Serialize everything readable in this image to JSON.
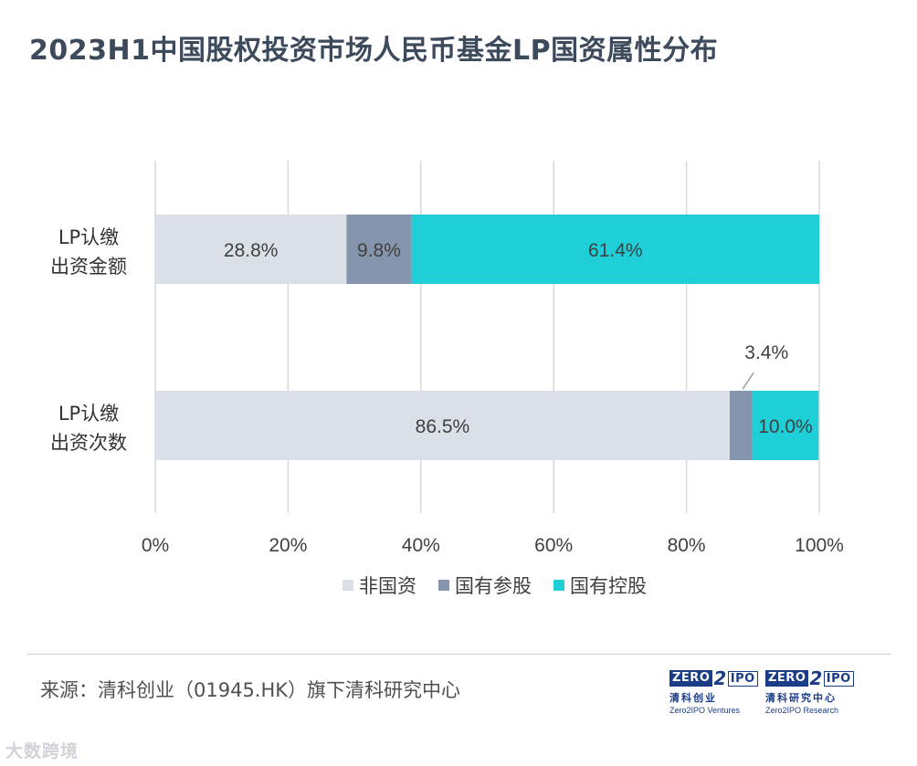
{
  "title": "2023H1中国股权投资市场人民币基金LP国资属性分布",
  "source": "来源：清科创业（01945.HK）旗下清科研究中心",
  "watermark": "大数跨境",
  "logos": [
    {
      "mark_left": "ZERO",
      "mark_mid": "2",
      "mark_right": "IPO",
      "cn": "清科创业",
      "en": "Zero2IPO Ventures"
    },
    {
      "mark_left": "ZERO",
      "mark_mid": "2",
      "mark_right": "IPO",
      "cn": "清科研究中心",
      "en": "Zero2IPO Research"
    }
  ],
  "colors": {
    "non_state": "#dbdfe7",
    "state_minority": "#8595ad",
    "state_controlled": "#1fcfd8",
    "grid": "#d9d9d9",
    "text": "#404040"
  },
  "chart_data": {
    "type": "bar",
    "orientation": "horizontal",
    "stacked": true,
    "title": "2023H1中国股权投资市场人民币基金LP国资属性分布",
    "categories": [
      [
        "LP认缴",
        "出资金额"
      ],
      [
        "LP认缴",
        "出资次数"
      ]
    ],
    "series": [
      {
        "name": "非国资",
        "values": [
          28.8,
          86.5
        ],
        "labels": [
          "28.8%",
          "86.5%"
        ],
        "color_key": "non_state"
      },
      {
        "name": "国有参股",
        "values": [
          9.8,
          3.4
        ],
        "labels": [
          "9.8%",
          "3.4%"
        ],
        "color_key": "state_minority"
      },
      {
        "name": "国有控股",
        "values": [
          61.4,
          10.0
        ],
        "labels": [
          "61.4%",
          "10.0%"
        ],
        "color_key": "state_controlled"
      }
    ],
    "xlim": [
      0,
      100
    ],
    "xticks": [
      0,
      20,
      40,
      60,
      80,
      100
    ],
    "xtick_labels": [
      "0%",
      "20%",
      "40%",
      "60%",
      "80%",
      "100%"
    ],
    "xlabel": "",
    "ylabel": "",
    "grid": true,
    "legend": "bottom",
    "annotations": [
      {
        "series": "国有参股",
        "category_index": 1,
        "label": "3.4%",
        "callout": true
      }
    ]
  }
}
